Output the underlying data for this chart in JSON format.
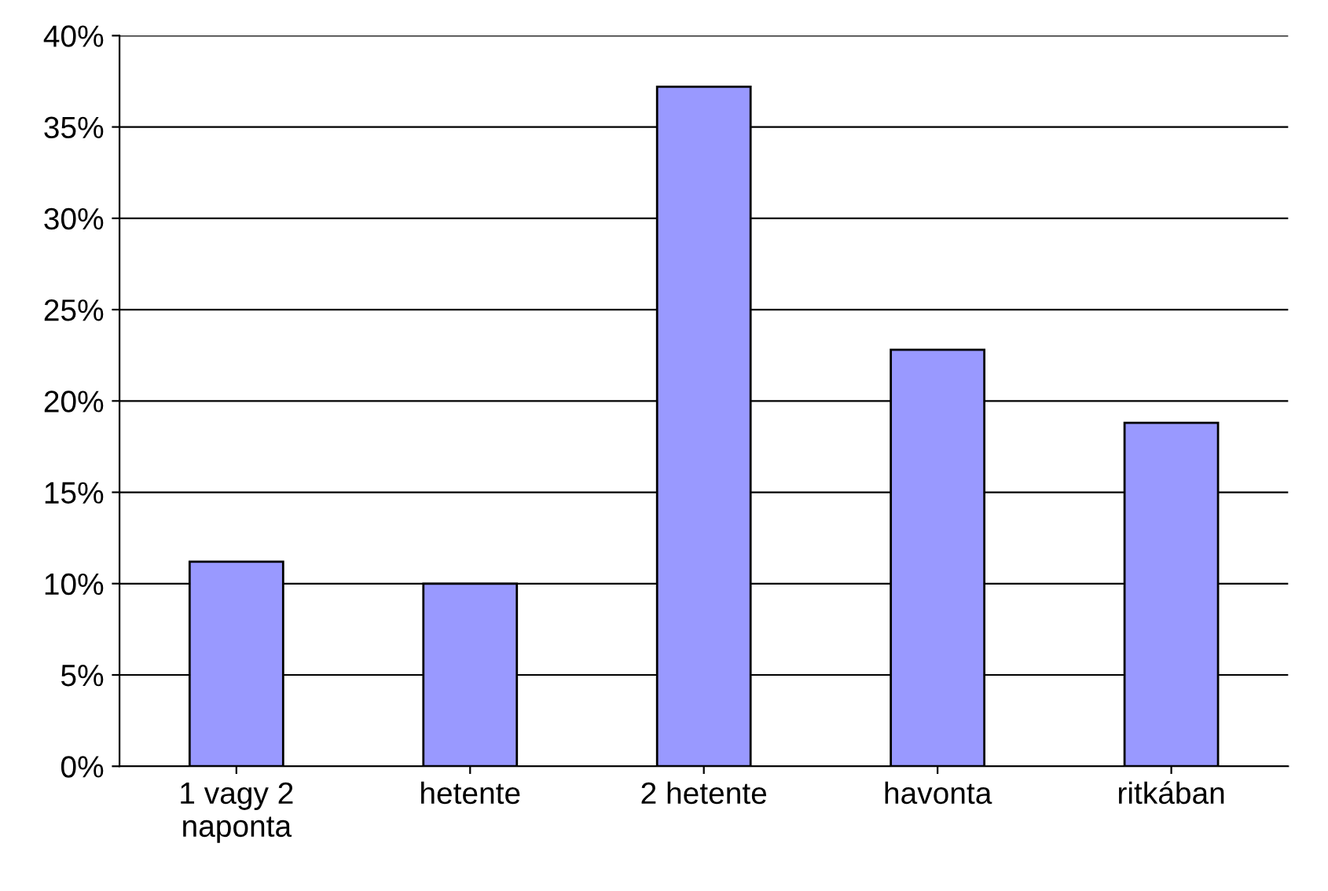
{
  "chart_data": {
    "type": "bar",
    "categories": [
      "1 vagy 2\nnaponta",
      "hetente",
      "2 hetente",
      "havonta",
      "ritkában"
    ],
    "values": [
      11.2,
      10.0,
      37.2,
      22.8,
      18.8
    ],
    "color": "#9999ff",
    "ylim": [
      0,
      40
    ],
    "yticks": [
      {
        "value": 0,
        "label": "0%"
      },
      {
        "value": 5,
        "label": "5%"
      },
      {
        "value": 10,
        "label": "10%"
      },
      {
        "value": 15,
        "label": "15%"
      },
      {
        "value": 20,
        "label": "20%"
      },
      {
        "value": 25,
        "label": "25%"
      },
      {
        "value": 30,
        "label": "30%"
      },
      {
        "value": 35,
        "label": "35%"
      },
      {
        "value": 40,
        "label": "40%"
      }
    ],
    "grid": "y",
    "legend": false
  }
}
